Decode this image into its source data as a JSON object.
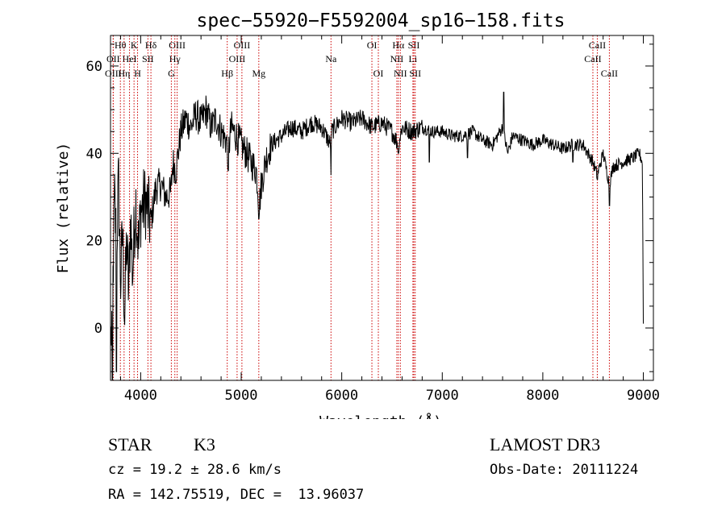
{
  "chart_data": {
    "type": "line",
    "title": "spec−55920−F5592004_sp16−158.fits",
    "xlabel": "Wavelength (Å)",
    "ylabel": "Flux (relative)",
    "xlim": [
      3700,
      9100
    ],
    "ylim": [
      -12,
      67
    ],
    "xticks": [
      4000,
      5000,
      6000,
      7000,
      8000,
      9000
    ],
    "yticks": [
      0,
      20,
      40,
      60
    ],
    "x_minor_step": 200,
    "y_minor_step": 5,
    "series": [
      {
        "name": "spectrum",
        "color": "#000000",
        "anchors": [
          [
            3700,
            -5
          ],
          [
            3720,
            5
          ],
          [
            3740,
            30
          ],
          [
            3760,
            18
          ],
          [
            3780,
            34
          ],
          [
            3800,
            10
          ],
          [
            3820,
            22
          ],
          [
            3840,
            2
          ],
          [
            3860,
            20
          ],
          [
            3880,
            8
          ],
          [
            3900,
            26
          ],
          [
            3920,
            12
          ],
          [
            3950,
            30
          ],
          [
            3980,
            18
          ],
          [
            4000,
            27
          ],
          [
            4050,
            29
          ],
          [
            4100,
            24
          ],
          [
            4150,
            32
          ],
          [
            4200,
            33
          ],
          [
            4250,
            30
          ],
          [
            4300,
            31
          ],
          [
            4320,
            38
          ],
          [
            4350,
            36
          ],
          [
            4400,
            45
          ],
          [
            4450,
            48
          ],
          [
            4500,
            46
          ],
          [
            4550,
            49
          ],
          [
            4600,
            47
          ],
          [
            4650,
            50
          ],
          [
            4700,
            46
          ],
          [
            4750,
            48
          ],
          [
            4800,
            45
          ],
          [
            4850,
            43
          ],
          [
            4870,
            40
          ],
          [
            4900,
            46
          ],
          [
            4950,
            44
          ],
          [
            5000,
            42
          ],
          [
            5050,
            40
          ],
          [
            5100,
            38
          ],
          [
            5150,
            36
          ],
          [
            5180,
            28
          ],
          [
            5200,
            33
          ],
          [
            5250,
            39
          ],
          [
            5300,
            42
          ],
          [
            5400,
            44
          ],
          [
            5500,
            46
          ],
          [
            5600,
            45
          ],
          [
            5700,
            47
          ],
          [
            5800,
            46
          ],
          [
            5890,
            42
          ],
          [
            5900,
            45
          ],
          [
            6000,
            48
          ],
          [
            6100,
            47
          ],
          [
            6200,
            48
          ],
          [
            6300,
            46
          ],
          [
            6400,
            47
          ],
          [
            6500,
            45
          ],
          [
            6563,
            42
          ],
          [
            6600,
            46
          ],
          [
            6700,
            45
          ],
          [
            6800,
            46
          ],
          [
            6900,
            45
          ],
          [
            7000,
            45
          ],
          [
            7100,
            44
          ],
          [
            7200,
            44
          ],
          [
            7300,
            45
          ],
          [
            7400,
            43
          ],
          [
            7500,
            42
          ],
          [
            7600,
            46
          ],
          [
            7650,
            40
          ],
          [
            7700,
            44
          ],
          [
            7800,
            43
          ],
          [
            7900,
            42
          ],
          [
            8000,
            43
          ],
          [
            8100,
            42
          ],
          [
            8200,
            41
          ],
          [
            8300,
            42
          ],
          [
            8400,
            42
          ],
          [
            8498,
            38
          ],
          [
            8542,
            35
          ],
          [
            8600,
            40
          ],
          [
            8662,
            33
          ],
          [
            8700,
            37
          ],
          [
            8800,
            38
          ],
          [
            8900,
            39
          ],
          [
            8960,
            40
          ],
          [
            8990,
            38
          ],
          [
            9000,
            1
          ]
        ],
        "spikes": [
          [
            7610,
            54
          ],
          [
            5893,
            35
          ],
          [
            8662,
            28
          ],
          [
            5175,
            25
          ],
          [
            8542,
            34
          ],
          [
            6870,
            38
          ],
          [
            7250,
            39
          ],
          [
            4870,
            36
          ],
          [
            6563,
            40
          ],
          [
            3760,
            -10
          ],
          [
            3720,
            -12
          ],
          [
            8300,
            38
          ]
        ]
      }
    ],
    "lines": [
      {
        "label": "Hθ",
        "wavelength": 3798,
        "row": 0
      },
      {
        "label": "OII",
        "wavelength": 3727,
        "row": 1
      },
      {
        "label": "OIII",
        "wavelength": 3727,
        "row": 2
      },
      {
        "label": "K",
        "wavelength": 3934,
        "row": 0
      },
      {
        "label": "HeI",
        "wavelength": 3889,
        "row": 1
      },
      {
        "label": "Hη",
        "wavelength": 3835,
        "row": 2
      },
      {
        "label": "H",
        "wavelength": 3969,
        "row": 2
      },
      {
        "label": "Hδ",
        "wavelength": 4102,
        "row": 0
      },
      {
        "label": "SII",
        "wavelength": 4072,
        "row": 1
      },
      {
        "label": "OIII",
        "wavelength": 4363,
        "row": 0
      },
      {
        "label": "Hγ",
        "wavelength": 4340,
        "row": 1
      },
      {
        "label": "G",
        "wavelength": 4305,
        "row": 2
      },
      {
        "label": "Hβ",
        "wavelength": 4861,
        "row": 2
      },
      {
        "label": "OIII",
        "wavelength": 5007,
        "row": 0
      },
      {
        "label": "OIII",
        "wavelength": 4959,
        "row": 1
      },
      {
        "label": "Mg",
        "wavelength": 5175,
        "row": 2
      },
      {
        "label": "Na",
        "wavelength": 5893,
        "row": 1
      },
      {
        "label": "OI",
        "wavelength": 6300,
        "row": 0
      },
      {
        "label": "OI",
        "wavelength": 6364,
        "row": 2
      },
      {
        "label": "Hα",
        "wavelength": 6563,
        "row": 0
      },
      {
        "label": "SII",
        "wavelength": 6717,
        "row": 0
      },
      {
        "label": "NII",
        "wavelength": 6548,
        "row": 1
      },
      {
        "label": "Li",
        "wavelength": 6708,
        "row": 1
      },
      {
        "label": "NII",
        "wavelength": 6583,
        "row": 2
      },
      {
        "label": "SII",
        "wavelength": 6731,
        "row": 2
      },
      {
        "label": "CaII",
        "wavelength": 8542,
        "row": 0
      },
      {
        "label": "CaII",
        "wavelength": 8498,
        "row": 1
      },
      {
        "label": "CaII",
        "wavelength": 8662,
        "row": 2
      }
    ],
    "line_color": "#cc0000"
  },
  "info": {
    "class": "STAR",
    "subclass": "K3",
    "cz": "cz = 19.2 ± 28.6 km/s",
    "radec": "RA = 142.75519, DEC =  13.96037",
    "survey": "LAMOST DR3",
    "obs_date": "Obs-Date: 20111224"
  }
}
